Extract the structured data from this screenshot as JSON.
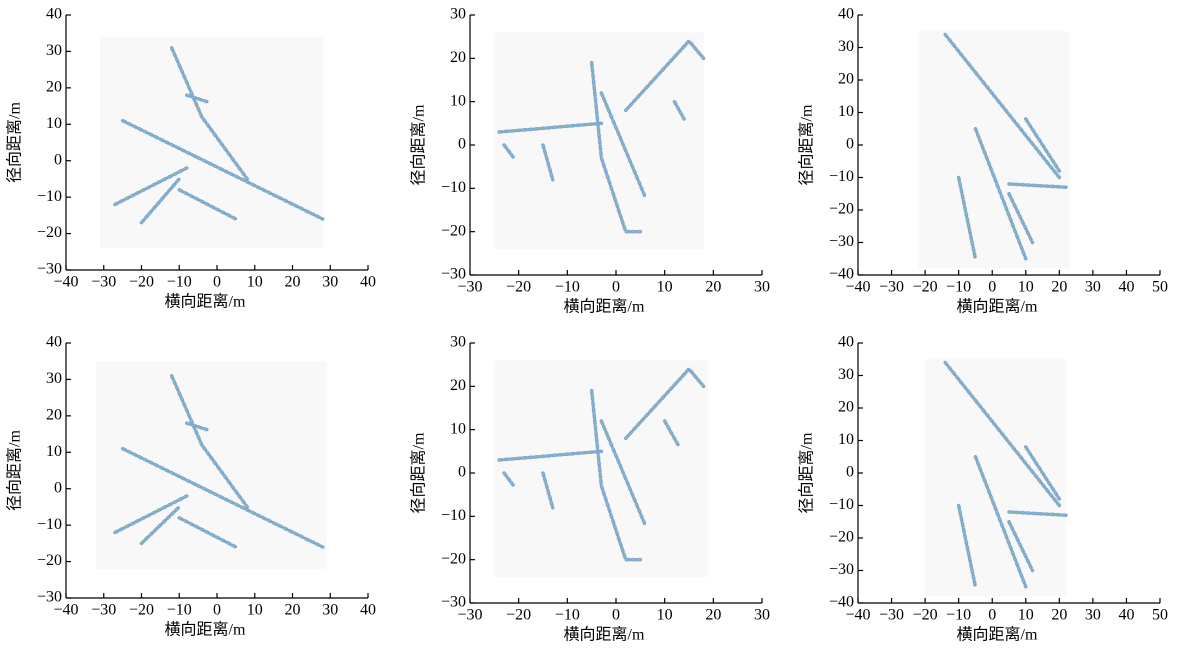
{
  "chart_data": [
    {
      "type": "image",
      "xlabel": "横向距离/m",
      "ylabel": "径向距离/m",
      "xlim": [
        -40,
        40
      ],
      "ylim": [
        -30,
        40
      ],
      "xticks": [
        {
          "value": -40,
          "label": "−40"
        },
        {
          "value": -30,
          "label": "−30"
        },
        {
          "value": -20,
          "label": "−20"
        },
        {
          "value": -10,
          "label": "−10"
        },
        0,
        10,
        20,
        30,
        40
      ],
      "yticks": [
        {
          "value": -30,
          "label": "−30"
        },
        {
          "value": -20,
          "label": "−20"
        },
        {
          "value": -10,
          "label": "−10"
        },
        0,
        10,
        20,
        30,
        40
      ]
    },
    {
      "type": "image",
      "xlabel": "横向距离/m",
      "ylabel": "径向距离/m",
      "xlim": [
        -30,
        30
      ],
      "ylim": [
        -30,
        30
      ],
      "xticks": [
        {
          "value": -30,
          "label": "−30"
        },
        {
          "value": -20,
          "label": "−20"
        },
        {
          "value": -10,
          "label": "−10"
        },
        0,
        10,
        20,
        30
      ],
      "yticks": [
        {
          "value": -30,
          "label": "−30"
        },
        {
          "value": -20,
          "label": "−20"
        },
        {
          "value": -10,
          "label": "−10"
        },
        0,
        10,
        20,
        30
      ]
    },
    {
      "type": "image",
      "xlabel": "横向距离/m",
      "ylabel": "径向距离/m",
      "xlim": [
        -40,
        50
      ],
      "ylim": [
        -40,
        40
      ],
      "xticks": [
        {
          "value": -40,
          "label": "−40"
        },
        {
          "value": -30,
          "label": "−30"
        },
        {
          "value": -20,
          "label": "−20"
        },
        {
          "value": -10,
          "label": "−10"
        },
        0,
        10,
        20,
        30,
        40,
        50
      ],
      "yticks": [
        {
          "value": -40,
          "label": "−40"
        },
        {
          "value": -30,
          "label": "−30"
        },
        {
          "value": -20,
          "label": "−20"
        },
        {
          "value": -10,
          "label": "−10"
        },
        0,
        10,
        20,
        30,
        40
      ]
    },
    {
      "type": "image",
      "xlabel": "横向距离/m",
      "ylabel": "径向距离/m",
      "xlim": [
        -40,
        40
      ],
      "ylim": [
        -30,
        40
      ],
      "xticks": [
        {
          "value": -40,
          "label": "−40"
        },
        {
          "value": -30,
          "label": "−30"
        },
        {
          "value": -20,
          "label": "−20"
        },
        {
          "value": -10,
          "label": "−10"
        },
        0,
        10,
        20,
        30,
        40
      ],
      "yticks": [
        {
          "value": -30,
          "label": "−30"
        },
        {
          "value": -20,
          "label": "−20"
        },
        {
          "value": -10,
          "label": "−10"
        },
        0,
        10,
        20,
        30,
        40
      ]
    },
    {
      "type": "image",
      "xlabel": "横向距离/m",
      "ylabel": "径向距离/m",
      "xlim": [
        -30,
        30
      ],
      "ylim": [
        -30,
        30
      ],
      "xticks": [
        {
          "value": -30,
          "label": "−30"
        },
        {
          "value": -20,
          "label": "−20"
        },
        {
          "value": -10,
          "label": "−10"
        },
        0,
        10,
        20,
        30
      ],
      "yticks": [
        {
          "value": -30,
          "label": "−30"
        },
        {
          "value": -20,
          "label": "−20"
        },
        {
          "value": -10,
          "label": "−10"
        },
        0,
        10,
        20,
        30
      ]
    },
    {
      "type": "image",
      "xlabel": "横向距离/m",
      "ylabel": "径向距离/m",
      "xlim": [
        -40,
        50
      ],
      "ylim": [
        -40,
        40
      ],
      "xticks": [
        {
          "value": -40,
          "label": "−40"
        },
        {
          "value": -30,
          "label": "−30"
        },
        {
          "value": -20,
          "label": "−20"
        },
        {
          "value": -10,
          "label": "−10"
        },
        0,
        10,
        20,
        30,
        40,
        50
      ],
      "yticks": [
        {
          "value": -40,
          "label": "−40"
        },
        {
          "value": -30,
          "label": "−30"
        },
        {
          "value": -20,
          "label": "−20"
        },
        {
          "value": -10,
          "label": "−10"
        },
        0,
        10,
        20,
        30,
        40
      ]
    }
  ]
}
